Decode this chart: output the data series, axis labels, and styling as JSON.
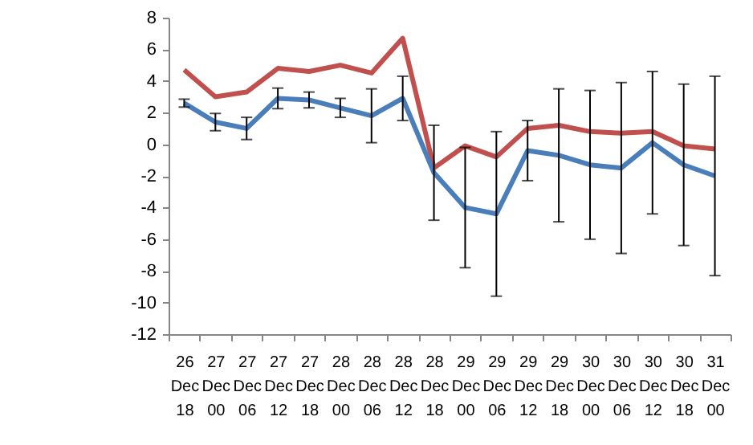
{
  "chart_data": {
    "type": "line",
    "categories": [
      "26 Dec 18",
      "27 Dec 00",
      "27 Dec 06",
      "27 Dec 12",
      "27 Dec 18",
      "28 Dec 00",
      "28 Dec 06",
      "28 Dec 12",
      "28 Dec 18",
      "29 Dec 00",
      "29 Dec 06",
      "29 Dec 12",
      "29 Dec 18",
      "30 Dec 00",
      "30 Dec 06",
      "30 Dec 12",
      "30 Dec 18",
      "31 Dec 00"
    ],
    "series": [
      {
        "color": "#c0504d",
        "values": [
          4.7,
          3.0,
          3.3,
          4.8,
          4.6,
          5.0,
          4.5,
          6.7,
          -1.5,
          -0.1,
          -0.8,
          1.0,
          1.2,
          0.8,
          0.7,
          0.8,
          -0.1,
          -0.3
        ]
      },
      {
        "color": "#4a7ebb",
        "values": [
          2.6,
          1.4,
          1.0,
          2.9,
          2.8,
          2.3,
          1.8,
          2.9,
          -1.8,
          -4.0,
          -4.4,
          -0.4,
          -0.7,
          -1.3,
          -1.5,
          0.1,
          -1.3,
          -2.0
        ],
        "errors": [
          0.25,
          0.55,
          0.7,
          0.65,
          0.5,
          0.6,
          1.7,
          1.4,
          3.0,
          3.8,
          5.2,
          1.9,
          4.2,
          4.7,
          5.4,
          4.5,
          5.1,
          6.3
        ]
      }
    ],
    "ylim": [
      -12,
      8
    ],
    "yticks": [
      -12,
      -10,
      -8,
      -6,
      -4,
      -2,
      0,
      2,
      4,
      6,
      8
    ],
    "grid": false,
    "legend": false,
    "marker": "none",
    "line_style": "solid"
  }
}
